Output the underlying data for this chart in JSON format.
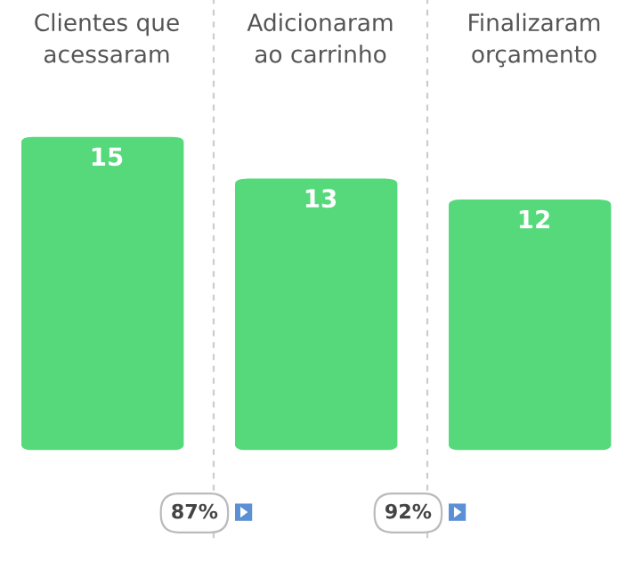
{
  "chart_data": {
    "type": "bar",
    "categories": [
      "Clientes que acessaram",
      "Adicionaram ao carrinho",
      "Finalizaram orçamento"
    ],
    "values": [
      15,
      13,
      12
    ],
    "color": "#55d97b",
    "data_labels": true,
    "annotations": [
      "87%",
      "92%"
    ]
  }
}
